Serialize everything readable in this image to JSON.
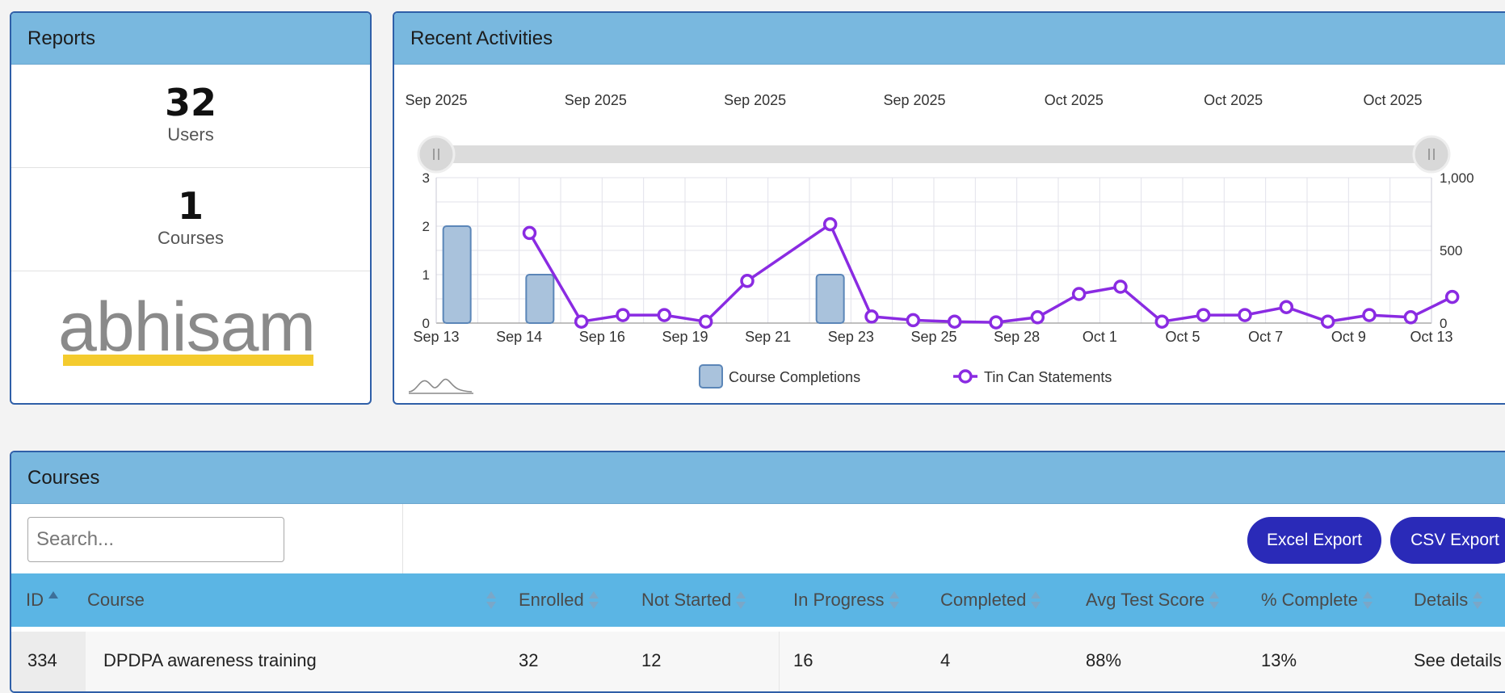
{
  "reports": {
    "title": "Reports",
    "stats": [
      {
        "value": "32",
        "label": "Users"
      },
      {
        "value": "1",
        "label": "Courses"
      }
    ],
    "logo_text": "abhisam"
  },
  "activities": {
    "title": "Recent Activities",
    "navigator_labels": [
      "Sep 2025",
      "Sep 2025",
      "Sep 2025",
      "Sep 2025",
      "Oct 2025",
      "Oct 2025",
      "Oct 2025"
    ]
  },
  "chart_data": {
    "type": "bar",
    "x_tick_labels": [
      "Sep 13",
      "Sep 14",
      "Sep 16",
      "Sep 19",
      "Sep 21",
      "Sep 23",
      "Sep 25",
      "Sep 28",
      "Oct 1",
      "Oct 5",
      "Oct 7",
      "Oct 9",
      "Oct 13"
    ],
    "y_left": {
      "ylim": [
        0,
        3
      ],
      "ticks": [
        "0",
        "1",
        "2",
        "3"
      ]
    },
    "y_right": {
      "ylim": [
        0,
        1000
      ],
      "ticks": [
        "0",
        "500",
        "1,000"
      ]
    },
    "grid": true,
    "legend_position": "bottom",
    "series": [
      {
        "name": "Course Completions",
        "type": "bar",
        "axis": "left",
        "color": "#a9c2dc",
        "points": [
          {
            "x": 0,
            "y": 2
          },
          {
            "x": 2,
            "y": 1
          },
          {
            "x": 9,
            "y": 1
          }
        ]
      },
      {
        "name": "Tin Can Statements",
        "type": "line",
        "axis": "right",
        "color": "#8a2be2",
        "points": [
          {
            "x": 2.25,
            "y": 620
          },
          {
            "x": 3.5,
            "y": 10
          },
          {
            "x": 4.5,
            "y": 55
          },
          {
            "x": 5.5,
            "y": 55
          },
          {
            "x": 6.5,
            "y": 10
          },
          {
            "x": 7.5,
            "y": 290
          },
          {
            "x": 9.5,
            "y": 680
          },
          {
            "x": 10.5,
            "y": 45
          },
          {
            "x": 11.5,
            "y": 20
          },
          {
            "x": 12.5,
            "y": 10
          },
          {
            "x": 13.5,
            "y": 5
          },
          {
            "x": 14.5,
            "y": 40
          },
          {
            "x": 15.5,
            "y": 200
          },
          {
            "x": 16.5,
            "y": 250
          },
          {
            "x": 17.5,
            "y": 10
          },
          {
            "x": 18.5,
            "y": 55
          },
          {
            "x": 19.5,
            "y": 55
          },
          {
            "x": 20.5,
            "y": 110
          },
          {
            "x": 21.5,
            "y": 10
          },
          {
            "x": 22.5,
            "y": 55
          },
          {
            "x": 23.5,
            "y": 40
          },
          {
            "x": 24.5,
            "y": 180
          }
        ]
      }
    ]
  },
  "courses": {
    "title": "Courses",
    "search_placeholder": "Search...",
    "excel_export": "Excel Export",
    "csv_export": "CSV Export",
    "columns": [
      "ID",
      "Course",
      "Enrolled",
      "Not Started",
      "In Progress",
      "Completed",
      "Avg Test Score",
      "% Complete",
      "Details"
    ],
    "rows": [
      [
        "334",
        "DPDPA awareness training",
        "32",
        "12",
        "16",
        "4",
        "88%",
        "13%",
        "See details"
      ]
    ]
  },
  "colors": {
    "panel_header": "#79b8df",
    "table_header": "#5bb5e4",
    "button": "#2a2ab8",
    "logo_underline": "#f4cb2e"
  }
}
